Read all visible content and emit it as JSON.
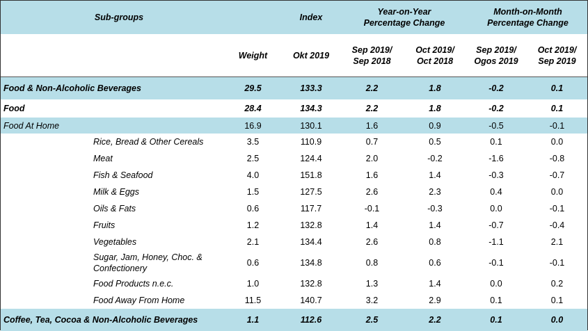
{
  "header": {
    "sub_groups": "Sub-groups",
    "index": "Index",
    "yoy": "Year-on-Year Percentage Change",
    "mom": "Month-on-Month Percentage Change",
    "columns": [
      "Weight",
      "Okt 2019",
      "Sep 2019/ Sep 2018",
      "Oct 2019/ Oct 2018",
      "Sep 2019/ Ogos 2019",
      "Oct 2019/ Sep 2019"
    ]
  },
  "rows": [
    {
      "style": "category",
      "label": "Food & Non-Alcoholic Beverages",
      "values": [
        "29.5",
        "133.3",
        "2.2",
        "1.8",
        "-0.2",
        "0.1"
      ]
    },
    {
      "style": "group",
      "label": "Food",
      "values": [
        "28.4",
        "134.3",
        "2.2",
        "1.8",
        "-0.2",
        "0.1"
      ]
    },
    {
      "style": "subgroup",
      "label": "Food At Home",
      "values": [
        "16.9",
        "130.1",
        "1.6",
        "0.9",
        "-0.5",
        "-0.1"
      ]
    },
    {
      "style": "item",
      "label": "Rice, Bread & Other Cereals",
      "values": [
        "3.5",
        "110.9",
        "0.7",
        "0.5",
        "0.1",
        "0.0"
      ]
    },
    {
      "style": "item",
      "label": "Meat",
      "values": [
        "2.5",
        "124.4",
        "2.0",
        "-0.2",
        "-1.6",
        "-0.8"
      ]
    },
    {
      "style": "item",
      "label": "Fish & Seafood",
      "values": [
        "4.0",
        "151.8",
        "1.6",
        "1.4",
        "-0.3",
        "-0.7"
      ]
    },
    {
      "style": "item",
      "label": "Milk & Eggs",
      "values": [
        "1.5",
        "127.5",
        "2.6",
        "2.3",
        "0.4",
        "0.0"
      ]
    },
    {
      "style": "item",
      "label": "Oils & Fats",
      "values": [
        "0.6",
        "117.7",
        "-0.1",
        "-0.3",
        "0.0",
        "-0.1"
      ]
    },
    {
      "style": "item",
      "label": "Fruits",
      "values": [
        "1.2",
        "132.8",
        "1.4",
        "1.4",
        "-0.7",
        "-0.4"
      ]
    },
    {
      "style": "item",
      "label": "Vegetables",
      "values": [
        "2.1",
        "134.4",
        "2.6",
        "0.8",
        "-1.1",
        "2.1"
      ]
    },
    {
      "style": "item",
      "label": "Sugar, Jam, Honey, Choc. & Confectionery",
      "values": [
        "0.6",
        "134.8",
        "0.8",
        "0.6",
        "-0.1",
        "-0.1"
      ]
    },
    {
      "style": "item",
      "label": "Food Products n.e.c.",
      "values": [
        "1.0",
        "132.8",
        "1.3",
        "1.4",
        "0.0",
        "0.2"
      ]
    },
    {
      "style": "item",
      "label": "Food Away From Home",
      "values": [
        "11.5",
        "140.7",
        "3.2",
        "2.9",
        "0.1",
        "0.1"
      ]
    },
    {
      "style": "category",
      "label": "Coffee, Tea, Cocoa & Non-Alcoholic Beverages",
      "values": [
        "1.1",
        "112.6",
        "2.5",
        "2.2",
        "0.1",
        "0.0"
      ]
    }
  ]
}
